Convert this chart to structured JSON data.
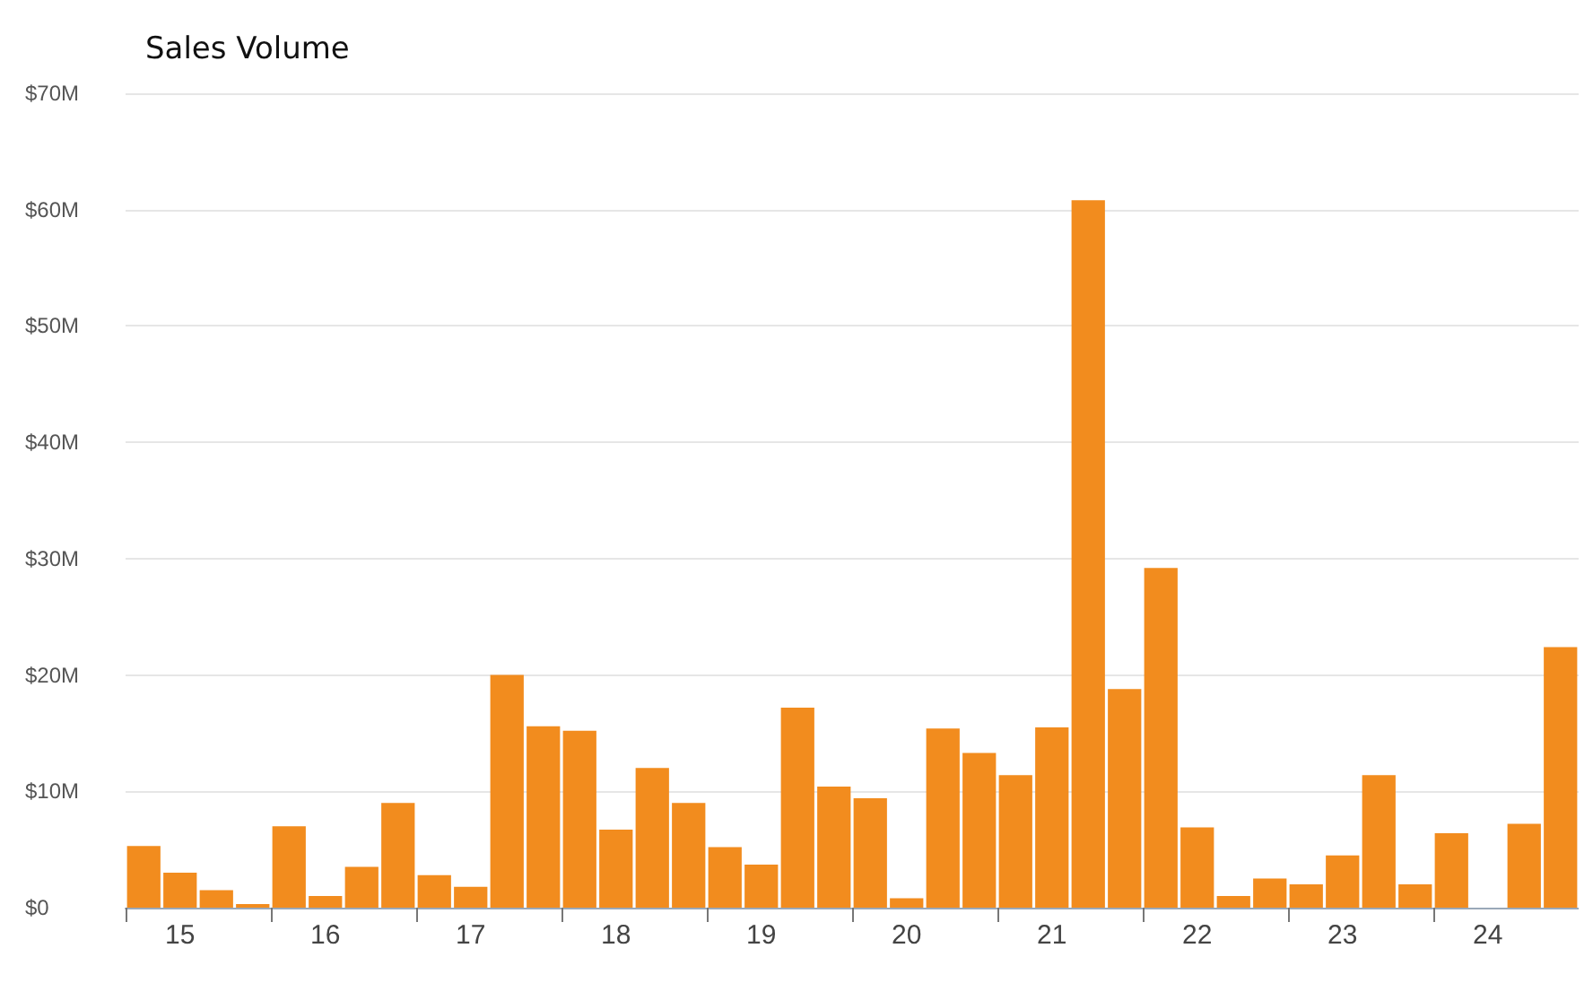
{
  "chart_data": {
    "type": "bar",
    "title": "Sales Volume",
    "categories": [
      null,
      "15",
      null,
      null,
      null,
      "16",
      null,
      null,
      null,
      "17",
      null,
      null,
      null,
      "18",
      null,
      null,
      null,
      "19",
      null,
      null,
      null,
      "20",
      null,
      null,
      null,
      "21",
      null,
      null,
      null,
      "22",
      null,
      null,
      null,
      "23",
      null,
      null,
      null,
      "24",
      null,
      null
    ],
    "values": [
      5.3,
      3,
      1.5,
      0.3,
      7,
      1,
      3.5,
      9,
      2.8,
      1.8,
      20,
      15.6,
      15.2,
      6.7,
      12,
      9,
      5.2,
      3.7,
      17.2,
      10.4,
      9.4,
      0.8,
      15.4,
      13.3,
      11.4,
      15.5,
      60.8,
      18.8,
      29.2,
      6.9,
      1,
      2.5,
      2,
      4.5,
      11.4,
      2,
      6.4,
      0,
      7.2,
      22.4
    ],
    "color": "#f28c1e",
    "ylim": [
      0,
      70
    ],
    "yticks": [
      {
        "value": 0,
        "label": "$0"
      },
      {
        "value": 10,
        "label": "$10M"
      },
      {
        "value": 20,
        "label": "$20M"
      },
      {
        "value": 30,
        "label": "$30M"
      },
      {
        "value": 40,
        "label": "$40M"
      },
      {
        "value": 50,
        "label": "$50M"
      },
      {
        "value": 60,
        "label": "$60M"
      },
      {
        "value": 70,
        "label": "$70M"
      }
    ],
    "grid": "y"
  }
}
